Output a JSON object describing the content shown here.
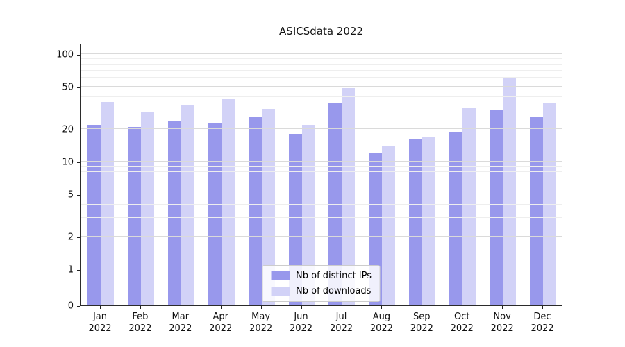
{
  "chart_data": {
    "type": "bar",
    "title": "ASICSdata 2022",
    "categories": [
      "Jan 2022",
      "Feb 2022",
      "Mar 2022",
      "Apr 2022",
      "May 2022",
      "Jun 2022",
      "Jul 2022",
      "Aug 2022",
      "Sep 2022",
      "Oct 2022",
      "Nov 2022",
      "Dec 2022"
    ],
    "series": [
      {
        "name": "Nb of distinct IPs",
        "color": "#9898ec",
        "values": [
          22,
          21,
          24,
          23,
          26,
          18,
          35,
          12,
          16,
          19,
          30,
          26
        ]
      },
      {
        "name": "Nb of downloads",
        "color": "#d2d2f7",
        "values": [
          36,
          29,
          34,
          38,
          31,
          22,
          48,
          14,
          17,
          32,
          60,
          35
        ]
      }
    ],
    "yscale": "symlog",
    "yticks": [
      0,
      1,
      2,
      5,
      10,
      20,
      50,
      100
    ],
    "yminor_gridlines": [
      3,
      4,
      6,
      7,
      8,
      9,
      30,
      40,
      60,
      70,
      80,
      90
    ],
    "grid": true,
    "legend_position": "lower center",
    "xlabel": "",
    "ylabel": ""
  }
}
